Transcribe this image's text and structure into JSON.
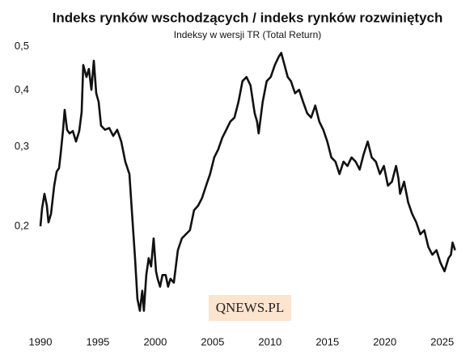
{
  "chart_data": {
    "type": "line",
    "title": "Indeks rynków wschodzących / indeks rynków rozwiniętych",
    "subtitle": "Indeksy w wersji TR (Total Return)",
    "watermark": "QNEWS.PL",
    "yscale": "log",
    "grid": false,
    "xlim": [
      1990,
      2026.5
    ],
    "xticks": [
      1990,
      1995,
      2000,
      2005,
      2010,
      2015,
      2020,
      2025
    ],
    "ylim": [
      0.12,
      0.52
    ],
    "yticks": [
      {
        "value": 0.2,
        "label": "0,2"
      },
      {
        "value": 0.3,
        "label": "0,3"
      },
      {
        "value": 0.4,
        "label": "0,4"
      },
      {
        "value": 0.5,
        "label": "0,5"
      }
    ],
    "x": [
      1990.0,
      1990.14,
      1990.35,
      1990.56,
      1990.7,
      1990.92,
      1991.2,
      1991.41,
      1991.62,
      1991.76,
      1991.97,
      1992.11,
      1992.32,
      1992.54,
      1992.82,
      1993.1,
      1993.38,
      1993.59,
      1993.73,
      1994.01,
      1994.22,
      1994.44,
      1994.65,
      1994.86,
      1995.07,
      1995.28,
      1995.63,
      1995.99,
      1996.34,
      1996.69,
      1997.04,
      1997.39,
      1997.75,
      1997.96,
      1998.24,
      1998.45,
      1998.66,
      1998.87,
      1999.01,
      1999.22,
      1999.43,
      1999.64,
      1999.86,
      2000.07,
      2000.21,
      2000.42,
      2000.63,
      2000.91,
      2001.12,
      2001.33,
      2001.62,
      2001.97,
      2002.32,
      2002.67,
      2003.02,
      2003.38,
      2003.73,
      2004.08,
      2004.43,
      2004.78,
      2005.14,
      2005.49,
      2005.84,
      2006.19,
      2006.54,
      2006.9,
      2007.25,
      2007.6,
      2007.95,
      2008.3,
      2008.66,
      2008.87,
      2009.01,
      2009.36,
      2009.71,
      2010.06,
      2010.42,
      2010.77,
      2010.98,
      2011.26,
      2011.54,
      2011.82,
      2012.18,
      2012.53,
      2012.88,
      2013.23,
      2013.58,
      2013.94,
      2014.29,
      2014.64,
      2014.99,
      2015.34,
      2015.7,
      2016.05,
      2016.4,
      2016.75,
      2017.1,
      2017.46,
      2017.81,
      2018.16,
      2018.51,
      2018.86,
      2019.22,
      2019.57,
      2019.92,
      2020.27,
      2020.62,
      2020.98,
      2021.19,
      2021.33,
      2021.68,
      2022.03,
      2022.38,
      2022.74,
      2023.09,
      2023.44,
      2023.79,
      2024.14,
      2024.5,
      2024.85,
      2025.2,
      2025.55,
      2025.76,
      2025.9,
      2026.12
    ],
    "series": [
      {
        "color": "#111111",
        "values": [
          0.2,
          0.219,
          0.236,
          0.222,
          0.204,
          0.213,
          0.246,
          0.264,
          0.269,
          0.289,
          0.327,
          0.362,
          0.327,
          0.321,
          0.325,
          0.308,
          0.325,
          0.358,
          0.455,
          0.428,
          0.446,
          0.401,
          0.465,
          0.394,
          0.377,
          0.334,
          0.327,
          0.33,
          0.317,
          0.327,
          0.308,
          0.278,
          0.261,
          0.217,
          0.17,
          0.138,
          0.13,
          0.144,
          0.13,
          0.156,
          0.17,
          0.163,
          0.188,
          0.159,
          0.153,
          0.147,
          0.156,
          0.156,
          0.147,
          0.153,
          0.15,
          0.177,
          0.188,
          0.192,
          0.196,
          0.217,
          0.222,
          0.231,
          0.246,
          0.261,
          0.284,
          0.296,
          0.314,
          0.327,
          0.341,
          0.348,
          0.377,
          0.419,
          0.428,
          0.41,
          0.356,
          0.341,
          0.321,
          0.377,
          0.419,
          0.428,
          0.455,
          0.475,
          0.484,
          0.455,
          0.428,
          0.419,
          0.394,
          0.401,
          0.377,
          0.356,
          0.348,
          0.37,
          0.341,
          0.327,
          0.308,
          0.284,
          0.278,
          0.261,
          0.278,
          0.272,
          0.284,
          0.278,
          0.267,
          0.289,
          0.308,
          0.284,
          0.278,
          0.261,
          0.272,
          0.246,
          0.251,
          0.272,
          0.255,
          0.236,
          0.251,
          0.226,
          0.213,
          0.204,
          0.192,
          0.196,
          0.18,
          0.173,
          0.177,
          0.166,
          0.159,
          0.17,
          0.173,
          0.184,
          0.177
        ]
      }
    ]
  }
}
